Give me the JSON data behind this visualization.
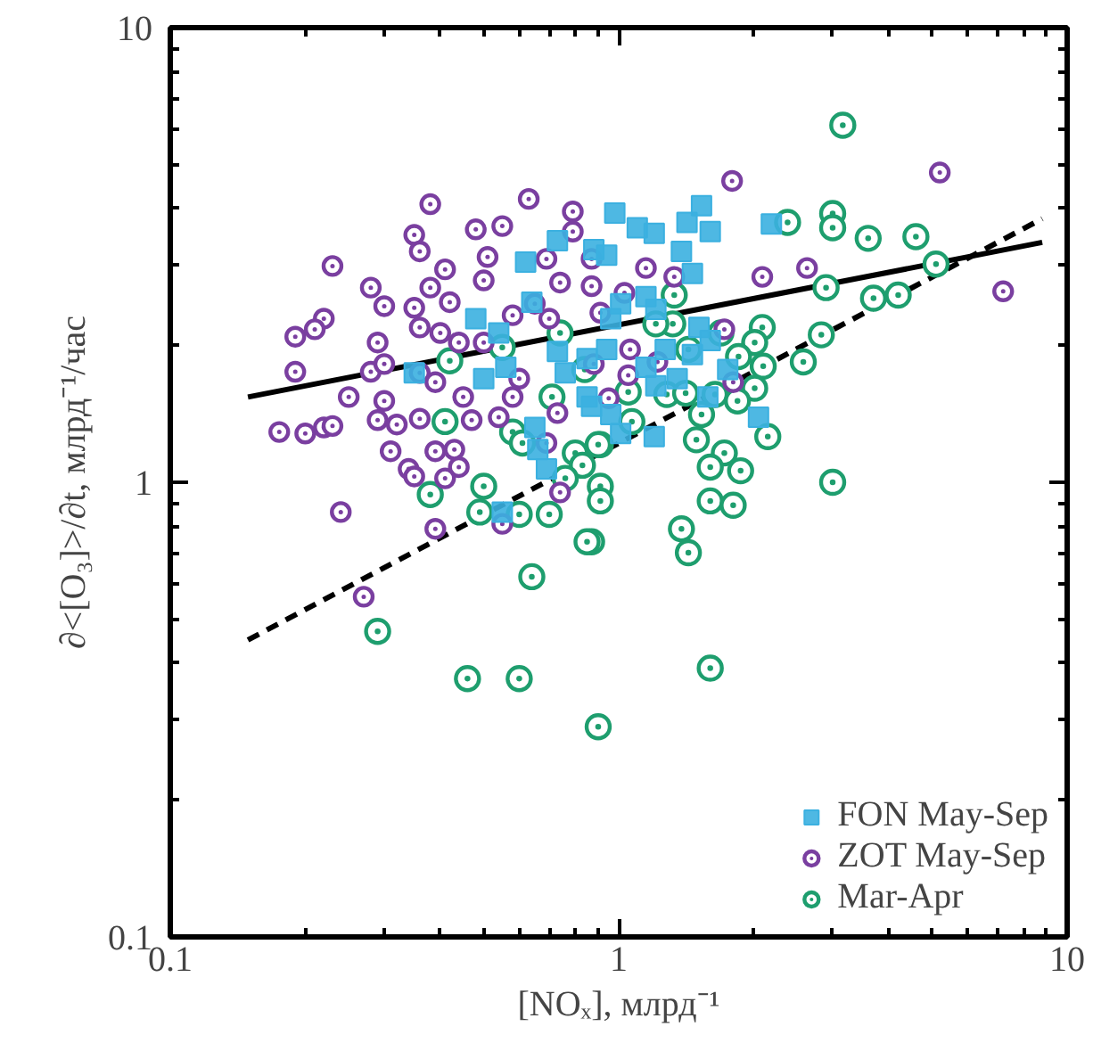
{
  "chart_data": {
    "type": "scatter",
    "xlabel": "[NOₓ], млрд⁻¹",
    "ylabel": "∂<[O₃]>/∂t, млрд⁻¹/час",
    "log": "xy",
    "xlim": [
      0.1,
      10
    ],
    "ylim": [
      0.1,
      10
    ],
    "xticks": [
      0.1,
      1,
      10
    ],
    "yticks": [
      0.1,
      1,
      10
    ],
    "grid": false,
    "legend": "bottom right",
    "series": [
      {
        "name": "FON May-Sep",
        "marker": "square",
        "color": "#3bb0e0",
        "x": [
          0.98,
          1.1,
          1.2,
          1.42,
          1.53,
          1.6,
          2.19,
          1.38,
          1.46,
          0.94,
          1.15,
          1.21,
          1.01,
          1.51,
          1.6,
          1.46,
          1.27,
          1.15,
          1.21,
          1.35,
          1.75,
          1.58,
          2.05,
          1.2,
          1.01,
          0.87,
          0.73,
          0.88,
          0.62,
          0.64,
          0.48,
          0.54,
          0.35,
          0.5,
          0.56,
          0.73,
          0.85,
          0.94,
          0.76,
          0.85,
          0.65,
          0.66,
          0.69,
          0.96,
          0.96,
          0.55
        ],
        "values": [
          3.91,
          3.63,
          3.53,
          3.73,
          4.06,
          3.56,
          3.7,
          3.22,
          2.88,
          3.16,
          2.56,
          2.4,
          2.47,
          2.19,
          2.05,
          1.91,
          1.96,
          1.79,
          1.63,
          1.69,
          1.77,
          1.54,
          1.39,
          1.26,
          1.28,
          1.47,
          3.4,
          3.25,
          3.05,
          2.49,
          2.29,
          2.13,
          1.74,
          1.69,
          1.79,
          1.94,
          1.87,
          1.96,
          1.74,
          1.54,
          1.32,
          1.18,
          1.07,
          2.29,
          1.41,
          0.86
        ]
      },
      {
        "name": "ZOT May-Sep",
        "marker": "circle",
        "color": "#7a3fa0",
        "x": [
          0.38,
          0.63,
          0.79,
          0.48,
          0.55,
          0.35,
          0.36,
          0.79,
          0.23,
          0.41,
          0.51,
          0.69,
          0.87,
          0.28,
          0.38,
          0.5,
          0.74,
          0.87,
          0.22,
          0.19,
          0.21,
          0.3,
          0.35,
          0.42,
          0.58,
          0.65,
          0.7,
          0.29,
          0.36,
          0.4,
          0.44,
          0.5,
          0.19,
          0.28,
          0.3,
          0.36,
          0.25,
          0.3,
          0.39,
          0.45,
          0.6,
          0.58,
          0.73,
          0.95,
          0.175,
          0.2,
          0.22,
          0.23,
          0.29,
          0.32,
          0.36,
          0.47,
          0.54,
          0.69,
          0.31,
          0.39,
          0.43,
          0.34,
          0.44,
          0.35,
          0.41,
          0.74,
          0.24,
          0.39,
          0.55,
          0.27,
          1.79,
          5.2,
          2.09,
          2.63,
          7.2,
          1.15,
          1.33,
          1.03,
          0.91,
          1.06,
          1.22,
          1.05,
          1.72,
          1.8,
          0.88
        ],
        "values": [
          4.09,
          4.2,
          3.94,
          3.6,
          3.66,
          3.5,
          3.22,
          3.56,
          2.99,
          2.94,
          3.13,
          3.1,
          3.1,
          2.68,
          2.68,
          2.78,
          2.75,
          2.7,
          2.29,
          2.09,
          2.17,
          2.44,
          2.42,
          2.49,
          2.33,
          2.47,
          2.29,
          2.03,
          2.19,
          2.13,
          2.03,
          2.03,
          1.75,
          1.75,
          1.82,
          1.74,
          1.54,
          1.51,
          1.66,
          1.54,
          1.69,
          1.54,
          1.42,
          1.53,
          1.29,
          1.28,
          1.32,
          1.33,
          1.37,
          1.34,
          1.38,
          1.37,
          1.39,
          1.22,
          1.17,
          1.17,
          1.18,
          1.07,
          1.08,
          1.03,
          1.02,
          0.95,
          0.86,
          0.79,
          0.81,
          0.56,
          4.6,
          4.8,
          2.83,
          2.96,
          2.63,
          2.96,
          2.83,
          2.61,
          2.36,
          1.96,
          1.84,
          1.72,
          2.17,
          1.66,
          1.82
        ]
      },
      {
        "name": "Mar-Apr",
        "marker": "circle",
        "color": "#1e9e6e",
        "x": [
          0.29,
          0.46,
          0.6,
          0.9,
          1.6,
          3.0,
          3.16,
          2.38,
          3.0,
          3.0,
          3.6,
          4.6,
          5.1,
          2.9,
          3.7,
          4.2,
          2.83,
          2.58,
          2.09,
          2.01,
          2.1,
          1.85,
          2.01,
          1.69,
          1.43,
          1.33,
          1.32,
          1.21,
          1.28,
          1.41,
          1.64,
          1.84,
          1.53,
          1.49,
          2.15,
          1.72,
          1.6,
          1.87,
          1.6,
          1.8,
          1.38,
          1.43,
          1.07,
          1.05,
          0.91,
          0.91,
          0.91,
          0.87,
          0.42,
          0.55,
          0.74,
          0.84,
          0.71,
          0.41,
          0.58,
          0.61,
          0.9,
          0.8,
          0.83,
          0.76,
          0.38,
          0.5,
          0.49,
          0.6,
          0.7,
          0.85,
          0.64
        ],
        "values": [
          0.47,
          0.37,
          0.37,
          0.29,
          0.39,
          1.0,
          6.1,
          3.73,
          3.9,
          3.63,
          3.44,
          3.47,
          3.02,
          2.68,
          2.54,
          2.58,
          2.11,
          1.84,
          2.19,
          2.03,
          1.8,
          1.89,
          1.61,
          2.13,
          1.96,
          2.58,
          2.23,
          2.23,
          1.56,
          1.57,
          1.56,
          1.51,
          1.41,
          1.24,
          1.26,
          1.16,
          1.08,
          1.06,
          0.91,
          0.89,
          0.79,
          0.7,
          1.36,
          1.58,
          1.21,
          0.98,
          0.91,
          0.74,
          1.85,
          1.98,
          2.13,
          1.77,
          1.54,
          1.36,
          1.29,
          1.22,
          1.21,
          1.16,
          1.09,
          1.02,
          0.94,
          0.98,
          0.86,
          0.85,
          0.85,
          0.74,
          0.62
        ]
      },
      {
        "type": "line",
        "line_style": "solid",
        "color": "#000000",
        "x": [
          0.149,
          8.8
        ],
        "values": [
          1.54,
          3.37
        ]
      },
      {
        "type": "line",
        "line_style": "dashed",
        "color": "#000000",
        "x": [
          0.149,
          8.8
        ],
        "values": [
          0.45,
          3.8
        ]
      }
    ]
  }
}
